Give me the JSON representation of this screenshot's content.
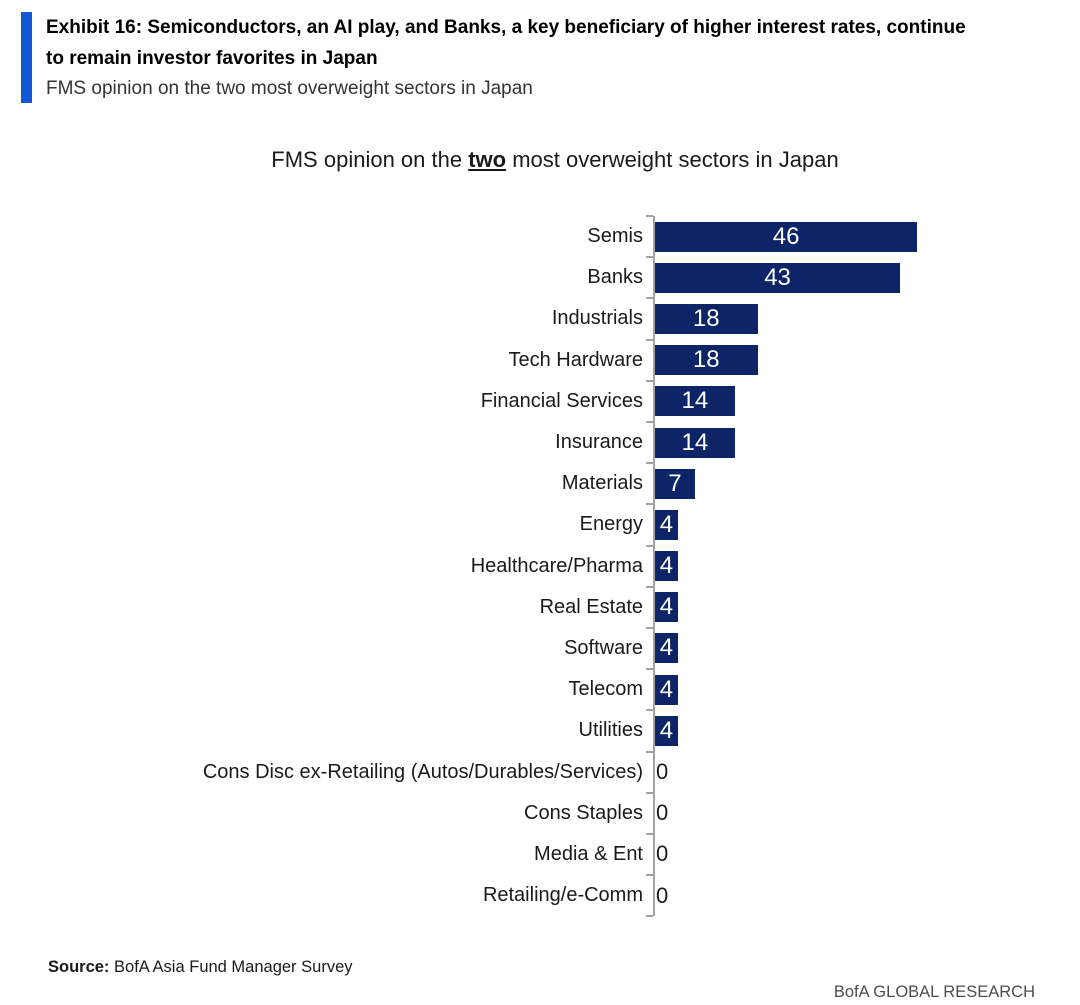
{
  "header": {
    "accent_color": "#1058d4",
    "title_lines": [
      "Exhibit 16: Semiconductors, an AI play, and Banks, a key beneficiary of higher interest rates, continue",
      "to remain investor favorites in Japan"
    ],
    "subtitle": "FMS opinion on the two most overweight sectors in Japan"
  },
  "chart_data": {
    "type": "bar",
    "orientation": "horizontal",
    "title": "FMS opinion on the two most overweight sectors in Japan",
    "title_parts": {
      "prefix": "FMS opinion on the ",
      "emphasis": "two",
      "suffix": " most overweight sectors in Japan"
    },
    "categories": [
      "Semis",
      "Banks",
      "Industrials",
      "Tech Hardware",
      "Financial Services",
      "Insurance",
      "Materials",
      "Energy",
      "Healthcare/Pharma",
      "Real Estate",
      "Software",
      "Telecom",
      "Utilities",
      "Cons Disc ex-Retailing (Autos/Durables/Services)",
      "Cons Staples",
      "Media & Ent",
      "Retailing/e-Comm"
    ],
    "values": [
      46,
      43,
      18,
      18,
      14,
      14,
      7,
      4,
      4,
      4,
      4,
      4,
      4,
      0,
      0,
      0,
      0
    ],
    "xlim": [
      0,
      46
    ],
    "bar_color": "#0d2466",
    "value_label_color": "#ffffff",
    "zero_label_color": "#1a1a1a",
    "axis_color": "#a3a3a3",
    "grid": false,
    "legend": false
  },
  "footer": {
    "source_label": "Source:",
    "source_text": " BofA Asia Fund Manager Survey",
    "brand": "BofA GLOBAL RESEARCH"
  }
}
